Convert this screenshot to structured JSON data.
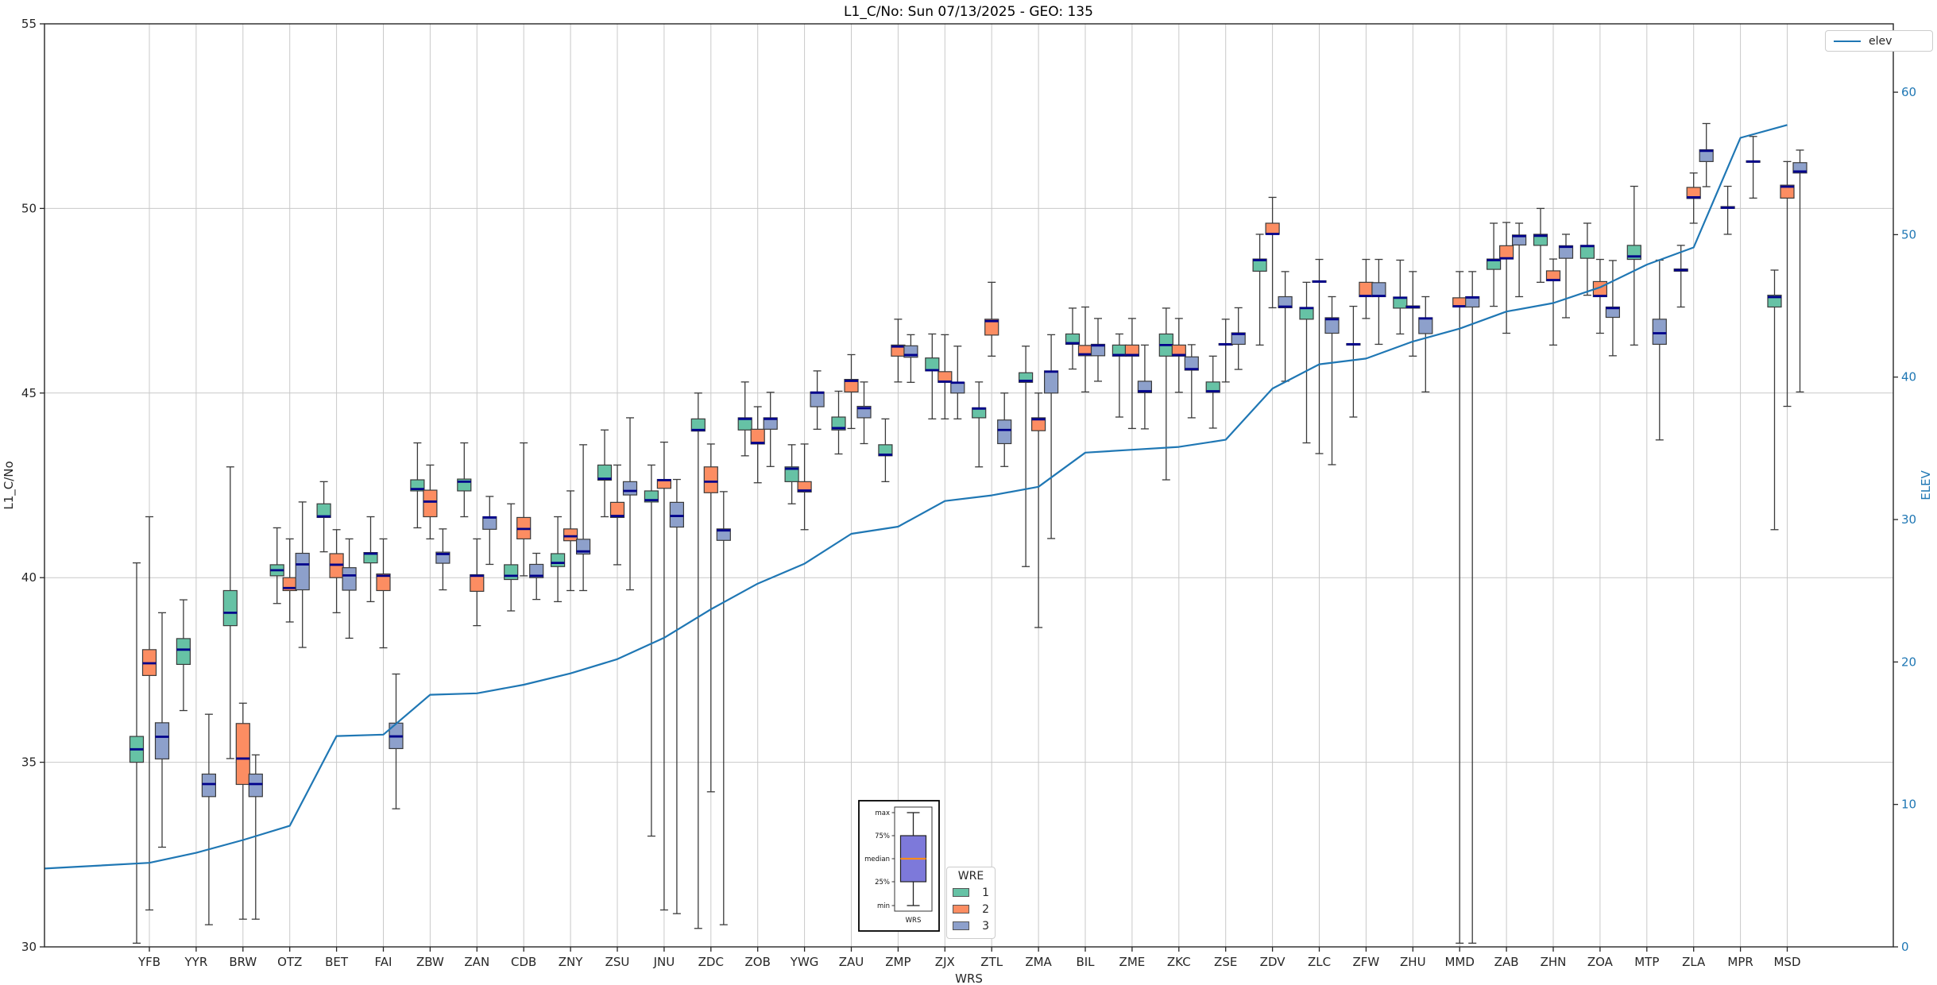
{
  "title": "L1_C/No: Sun 07/13/2025 - GEO: 135",
  "chart_data": {
    "type": "boxplot+line",
    "title": "L1_C/No: Sun 07/13/2025 - GEO: 135",
    "xlabel": "WRS",
    "ylabel_left": "L1_C/No",
    "ylabel_right": "ELEV",
    "ylim_left": [
      30,
      55
    ],
    "yticks_left": [
      30,
      35,
      40,
      45,
      50,
      55
    ],
    "ylim_right": [
      0,
      64.8
    ],
    "yticks_right": [
      0,
      10,
      20,
      30,
      40,
      50,
      60
    ],
    "grid": true,
    "legend_position": "lower-center-inside",
    "categories": [
      "YFB",
      "YYR",
      "BRW",
      "OTZ",
      "BET",
      "FAI",
      "ZBW",
      "ZAN",
      "CDB",
      "ZNY",
      "ZSU",
      "JNU",
      "ZDC",
      "ZOB",
      "YWG",
      "ZAU",
      "ZMP",
      "ZJX",
      "ZTL",
      "ZMA",
      "BIL",
      "ZME",
      "ZKC",
      "ZSE",
      "ZDV",
      "ZLC",
      "ZFW",
      "ZHU",
      "MMD",
      "ZAB",
      "ZHN",
      "ZOA",
      "MTP",
      "ZLA",
      "MPR",
      "MSD"
    ],
    "box_format": [
      "whisker_low",
      "q1",
      "median",
      "q3",
      "whisker_high"
    ],
    "legend": {
      "title": "WRE",
      "entries": [
        {
          "label": "1",
          "color": "#66c2a5"
        },
        {
          "label": "2",
          "color": "#fc8d62"
        },
        {
          "label": "3",
          "color": "#8da0cb"
        }
      ]
    },
    "series": [
      {
        "name": "1",
        "color": "#66c2a5",
        "boxes": [
          [
            30.1,
            35.0,
            35.35,
            35.7,
            40.4
          ],
          [
            36.4,
            37.65,
            38.05,
            38.35,
            39.4
          ],
          [
            35.1,
            38.7,
            39.05,
            39.65,
            43.0
          ],
          [
            39.3,
            40.05,
            40.2,
            40.35,
            41.35
          ],
          [
            40.7,
            41.63,
            41.66,
            42.0,
            42.6
          ],
          [
            39.35,
            40.4,
            40.65,
            40.68,
            41.65
          ],
          [
            41.35,
            42.35,
            42.4,
            42.65,
            43.65
          ],
          [
            41.65,
            42.35,
            42.6,
            42.67,
            43.65
          ],
          [
            39.1,
            39.95,
            40.05,
            40.35,
            42.0
          ],
          [
            39.35,
            40.3,
            40.4,
            40.65,
            41.65
          ],
          [
            41.65,
            42.64,
            42.68,
            43.05,
            44.0
          ],
          [
            33.0,
            42.05,
            42.1,
            42.35,
            43.05
          ],
          [
            30.5,
            43.97,
            44.0,
            44.3,
            45.0
          ],
          [
            43.3,
            44.0,
            44.3,
            44.33,
            45.3
          ],
          [
            42.0,
            42.6,
            42.95,
            43.0,
            43.6
          ],
          [
            43.35,
            44.0,
            44.05,
            44.35,
            45.05
          ],
          [
            42.6,
            43.3,
            43.33,
            43.6,
            44.3
          ],
          [
            44.3,
            45.6,
            45.62,
            45.95,
            46.6
          ],
          [
            43.0,
            44.33,
            44.58,
            44.6,
            45.3
          ],
          [
            40.3,
            45.29,
            45.33,
            45.55,
            46.27
          ],
          [
            45.65,
            46.32,
            46.35,
            46.6,
            47.3
          ],
          [
            44.35,
            46.0,
            46.03,
            46.3,
            46.6
          ],
          [
            42.65,
            46.0,
            46.3,
            46.6,
            47.3
          ],
          [
            44.05,
            45.02,
            45.05,
            45.3,
            46.0
          ],
          [
            46.3,
            48.3,
            48.6,
            48.63,
            49.3
          ],
          [
            43.65,
            47.0,
            47.3,
            47.32,
            48.0
          ],
          [
            44.35,
            46.3,
            46.32,
            46.34,
            47.35
          ],
          [
            46.6,
            47.3,
            47.58,
            47.6,
            48.6
          ],
          null,
          [
            47.35,
            48.35,
            48.6,
            48.63,
            49.6
          ],
          [
            48.0,
            49.0,
            49.26,
            49.3,
            50.0
          ],
          [
            47.65,
            48.65,
            48.98,
            49.0,
            49.6
          ],
          [
            46.3,
            48.62,
            48.7,
            49.0,
            50.6
          ],
          [
            47.33,
            48.3,
            48.33,
            48.36,
            49.0
          ],
          [
            49.3,
            50.0,
            50.02,
            50.05,
            50.6
          ],
          [
            41.3,
            47.33,
            47.6,
            47.65,
            48.33
          ]
        ]
      },
      {
        "name": "2",
        "color": "#fc8d62",
        "boxes": [
          [
            31.0,
            37.35,
            37.68,
            38.05,
            41.65
          ],
          null,
          [
            30.75,
            34.4,
            35.1,
            36.05,
            36.6
          ],
          [
            38.8,
            39.65,
            39.72,
            40.0,
            41.05
          ],
          [
            39.05,
            40.0,
            40.35,
            40.65,
            41.3
          ],
          [
            38.1,
            39.65,
            40.05,
            40.1,
            41.05
          ],
          [
            41.05,
            41.65,
            42.06,
            42.37,
            43.05
          ],
          [
            38.7,
            39.63,
            40.05,
            40.08,
            41.05
          ],
          [
            40.05,
            41.05,
            41.32,
            41.63,
            43.65
          ],
          [
            39.65,
            41.0,
            41.12,
            41.32,
            42.35
          ],
          [
            40.35,
            41.63,
            41.67,
            42.04,
            43.05
          ],
          [
            31.0,
            42.42,
            42.64,
            42.66,
            43.67
          ],
          [
            34.2,
            42.3,
            42.6,
            43.0,
            43.62
          ],
          [
            42.57,
            43.62,
            43.65,
            44.02,
            44.63
          ],
          [
            41.3,
            42.32,
            42.36,
            42.6,
            43.62
          ],
          [
            44.04,
            45.03,
            45.33,
            45.37,
            46.04
          ],
          [
            45.3,
            46.0,
            46.26,
            46.3,
            47.0
          ],
          [
            44.3,
            45.29,
            45.31,
            45.58,
            46.58
          ],
          [
            46.0,
            46.57,
            46.95,
            47.0,
            48.0
          ],
          [
            38.65,
            43.98,
            44.29,
            44.33,
            45.0
          ],
          [
            45.03,
            46.01,
            46.05,
            46.29,
            47.33
          ],
          [
            44.04,
            46.0,
            46.03,
            46.3,
            47.02
          ],
          [
            45.02,
            46.0,
            46.03,
            46.3,
            47.02
          ],
          [
            45.3,
            46.3,
            46.32,
            46.34,
            47.0
          ],
          [
            47.31,
            49.3,
            49.31,
            49.6,
            50.3
          ],
          [
            43.36,
            48.0,
            48.02,
            48.04,
            48.62
          ],
          [
            47.02,
            47.61,
            47.63,
            48.0,
            48.62
          ],
          [
            46.0,
            47.3,
            47.33,
            47.36,
            48.29
          ],
          [
            30.1,
            47.33,
            47.35,
            47.58,
            48.29
          ],
          [
            46.62,
            48.63,
            48.65,
            48.99,
            49.62
          ],
          [
            46.3,
            48.04,
            48.06,
            48.31,
            48.63
          ],
          [
            46.62,
            47.61,
            47.63,
            48.02,
            48.62
          ],
          null,
          [
            49.6,
            50.27,
            50.3,
            50.57,
            50.96
          ],
          null,
          [
            44.64,
            50.28,
            50.59,
            50.63,
            51.27
          ]
        ]
      },
      {
        "name": "3",
        "color": "#8da0cb",
        "boxes": [
          [
            32.7,
            35.09,
            35.69,
            36.07,
            39.05
          ],
          [
            30.6,
            34.07,
            34.41,
            34.68,
            36.3
          ],
          [
            30.75,
            34.07,
            34.41,
            34.68,
            35.2
          ],
          [
            38.11,
            39.67,
            40.36,
            40.66,
            42.05
          ],
          [
            38.36,
            39.66,
            40.06,
            40.27,
            41.05
          ],
          [
            33.74,
            35.37,
            35.7,
            36.06,
            37.39
          ],
          [
            39.67,
            40.39,
            40.64,
            40.69,
            41.32
          ],
          [
            40.36,
            41.31,
            41.63,
            41.65,
            42.2
          ],
          [
            39.41,
            40.0,
            40.05,
            40.36,
            40.66
          ],
          [
            39.65,
            40.64,
            40.71,
            41.04,
            43.6
          ],
          [
            39.67,
            42.24,
            42.35,
            42.6,
            44.33
          ],
          [
            30.9,
            41.37,
            41.67,
            42.04,
            42.66
          ],
          [
            30.6,
            41.01,
            41.28,
            41.32,
            42.33
          ],
          [
            43.01,
            44.02,
            44.3,
            44.33,
            45.02
          ],
          [
            44.02,
            44.63,
            45.01,
            45.03,
            45.6
          ],
          [
            43.63,
            44.33,
            44.59,
            44.64,
            45.3
          ],
          [
            45.29,
            45.97,
            46.03,
            46.28,
            46.58
          ],
          [
            44.3,
            45.0,
            45.28,
            45.29,
            46.27
          ],
          [
            43.01,
            43.63,
            44.0,
            44.27,
            45.0
          ],
          [
            41.06,
            45.0,
            45.58,
            45.6,
            46.58
          ],
          [
            45.32,
            46.01,
            46.29,
            46.32,
            47.02
          ],
          [
            44.03,
            45.01,
            45.05,
            45.32,
            46.3
          ],
          [
            44.33,
            45.62,
            45.65,
            45.98,
            46.31
          ],
          [
            45.64,
            46.32,
            46.6,
            46.63,
            47.31
          ],
          [
            45.32,
            47.31,
            47.34,
            47.61,
            48.29
          ],
          [
            43.06,
            46.62,
            47.0,
            47.04,
            47.61
          ],
          [
            46.32,
            47.61,
            47.63,
            47.99,
            48.62
          ],
          [
            45.03,
            46.61,
            47.02,
            47.04,
            47.61
          ],
          [
            30.1,
            47.33,
            47.59,
            47.61,
            48.29
          ],
          [
            47.61,
            49.01,
            49.25,
            49.28,
            49.6
          ],
          [
            47.04,
            48.65,
            48.96,
            48.99,
            49.3
          ],
          [
            46.01,
            47.05,
            47.3,
            47.33,
            48.59
          ],
          [
            43.73,
            46.32,
            46.62,
            47.0,
            48.6
          ],
          [
            50.59,
            51.27,
            51.56,
            51.59,
            52.3
          ],
          [
            50.28,
            51.25,
            51.27,
            51.29,
            51.95
          ],
          [
            45.03,
            50.96,
            51.0,
            51.24,
            51.58
          ]
        ]
      }
    ],
    "line_series": {
      "name": "elev",
      "color": "#1f77b4",
      "axis": "right",
      "starts_at_left_edge": true,
      "left_edge_value": 5.5,
      "values": [
        5.9,
        6.6,
        7.5,
        8.5,
        14.8,
        14.9,
        17.7,
        17.8,
        18.4,
        19.2,
        20.2,
        21.7,
        23.7,
        25.5,
        26.9,
        29.0,
        29.5,
        31.3,
        31.7,
        32.3,
        34.7,
        34.9,
        35.1,
        35.6,
        39.2,
        40.9,
        41.3,
        42.5,
        43.4,
        44.6,
        45.2,
        46.3,
        47.9,
        49.1,
        56.8,
        57.7
      ]
    },
    "inset": {
      "labels": [
        "max",
        "75%",
        "median",
        "25%",
        "min"
      ],
      "xlabel": "WRS",
      "box_color": "#7d79da",
      "median_color": "#ff8c1a"
    },
    "style": {
      "median_color": "#00008b",
      "box_edge_color": "#3b3b3b",
      "grid_color": "#c9c9c9",
      "spine_color": "#262626",
      "right_axis_color": "#1f77b4",
      "text_color": "#262626"
    }
  }
}
